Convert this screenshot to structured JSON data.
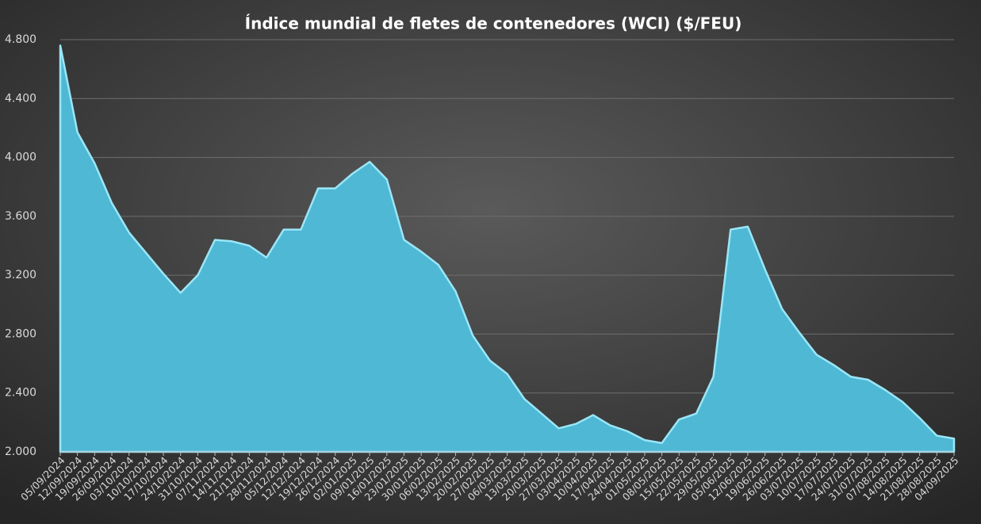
{
  "chart_data": {
    "type": "area",
    "title": "Índice mundial de fletes de contenedores (WCI) ($/FEU)",
    "categories": [
      "05/09/2024",
      "12/09/2024",
      "19/09/2024",
      "26/09/2024",
      "03/10/2024",
      "10/10/2024",
      "17/10/2024",
      "24/10/2024",
      "31/10/2024",
      "07/11/2024",
      "14/11/2024",
      "21/11/2024",
      "28/11/2024",
      "05/12/2024",
      "12/12/2024",
      "19/12/2024",
      "26/12/2024",
      "02/01/2025",
      "09/01/2025",
      "16/01/2025",
      "23/01/2025",
      "30/01/2025",
      "06/02/2025",
      "13/02/2025",
      "20/02/2025",
      "27/02/2025",
      "06/03/2025",
      "13/03/2025",
      "20/03/2025",
      "27/03/2025",
      "03/04/2025",
      "10/04/2025",
      "17/04/2025",
      "24/04/2025",
      "01/05/2025",
      "08/05/2025",
      "15/05/2025",
      "22/05/2025",
      "29/05/2025",
      "05/06/2025",
      "12/06/2025",
      "19/06/2025",
      "26/06/2025",
      "03/07/2025",
      "10/07/2025",
      "17/07/2025",
      "24/07/2025",
      "31/07/2025",
      "07/08/2025",
      "14/08/2025",
      "21/08/2025",
      "28/08/2025",
      "04/09/2025"
    ],
    "values": [
      4760,
      4170,
      3960,
      3690,
      3490,
      3350,
      3210,
      3080,
      3200,
      3440,
      3430,
      3400,
      3320,
      3510,
      3510,
      3790,
      3790,
      3890,
      3970,
      3850,
      3440,
      3360,
      3270,
      3090,
      2790,
      2620,
      2530,
      2360,
      2260,
      2160,
      2190,
      2250,
      2180,
      2140,
      2080,
      2060,
      2220,
      2260,
      2510,
      3510,
      3530,
      3240,
      2970,
      2810,
      2660,
      2590,
      2510,
      2490,
      2420,
      2340,
      2230,
      2110,
      2090
    ],
    "color": "#4fb8d4",
    "ylim": [
      2000,
      4800
    ],
    "yticks": [
      {
        "value": 2000,
        "label": "2.000"
      },
      {
        "value": 2400,
        "label": "2.400"
      },
      {
        "value": 2800,
        "label": "2.800"
      },
      {
        "value": 3200,
        "label": "3.200"
      },
      {
        "value": 3600,
        "label": "3.600"
      },
      {
        "value": 4000,
        "label": "4.000"
      },
      {
        "value": 4400,
        "label": "4.400"
      },
      {
        "value": 4800,
        "label": "4.800"
      }
    ],
    "grid": true
  }
}
